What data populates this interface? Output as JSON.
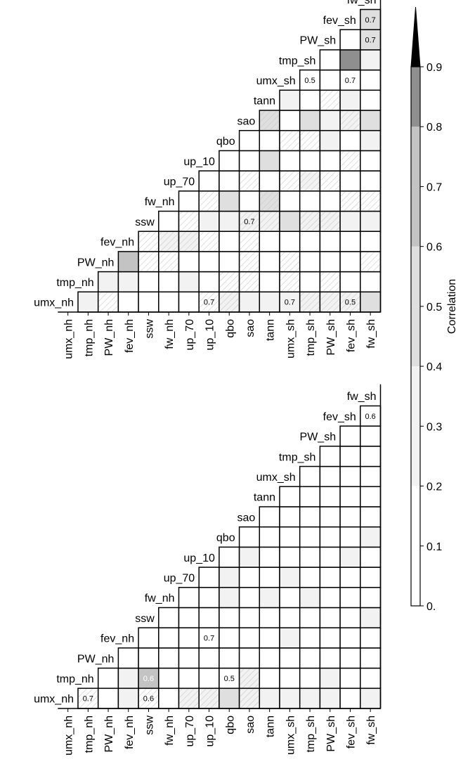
{
  "chart_data": [
    {
      "type": "heatmap",
      "variables": [
        "umx_nh",
        "tmp_nh",
        "PW_nh",
        "fev_nh",
        "ssw",
        "fw_nh",
        "up_70",
        "up_10",
        "qbo",
        "sao",
        "tann",
        "umx_sh",
        "tmp_sh",
        "PW_sh",
        "fev_sh",
        "fw_sh"
      ],
      "levels": [
        "0000000000000000",
        "1000000000000000",
        "0100000000000000",
        "0130000000000000",
        "0000000000000000",
        "0001000000000000",
        "0101000000000000",
        "0000100000000000",
        "1000120000000000",
        "1000100001000000",
        "1000120202000000",
        "1000200000100000",
        "1000101002000000",
        "1000100011000200",
        "1000100001104000",
        "2000100012001220"
      ],
      "hatched": [
        "0000000000000000",
        "0000000000000000",
        "1000000000000000",
        "0001000000000000",
        "0011000000000000",
        "0011000000000000",
        "0001100000000000",
        "1001010100000000",
        "1100000000000000",
        "0111101000000000",
        "0000110001000000",
        "0110001010000000",
        "1000101010000000",
        "1100101000100000",
        "1000010101000000",
        "0010010000000000"
      ],
      "annotations": [
        {
          "row": "up_10",
          "col": "umx_nh",
          "text": "0.7"
        },
        {
          "row": "umx_sh",
          "col": "umx_nh",
          "text": "0.7"
        },
        {
          "row": "fev_sh",
          "col": "umx_nh",
          "text": "0.5"
        },
        {
          "row": "sao",
          "col": "ssw",
          "text": "0.7"
        },
        {
          "row": "tmp_sh",
          "col": "umx_sh",
          "text": "0.5"
        },
        {
          "row": "fev_sh",
          "col": "umx_sh",
          "text": "0.7"
        },
        {
          "row": "fw_sh",
          "col": "fev_sh",
          "text": "0.7"
        },
        {
          "row": "fw_sh",
          "col": "PW_sh",
          "text": "0.7"
        }
      ]
    },
    {
      "type": "heatmap",
      "variables": [
        "umx_nh",
        "tmp_nh",
        "PW_nh",
        "fev_nh",
        "ssw",
        "fw_nh",
        "up_70",
        "up_10",
        "qbo",
        "sao",
        "tann",
        "umx_sh",
        "tmp_sh",
        "PW_sh",
        "fev_sh",
        "fw_sh"
      ],
      "levels": [
        "0000000000000000",
        "0000000000000000",
        "0000000000000000",
        "1100000000000000",
        "0300000000000000",
        "0000000000000000",
        "1000000000000000",
        "1000000300000000",
        "2000011000000000",
        "1100000100000000",
        "1000010000000000",
        "1001001000000000",
        "1000010000000000",
        "1100000000000000",
        "0000000100000000",
        "1000100010000000"
      ],
      "hatched": [
        "0000000000000000",
        "1000000000000000",
        "0000000000000000",
        "0000000000000000",
        "1100000000000000",
        "0000000000000000",
        "1000000000000000",
        "1000000000000000",
        "0000000000000000",
        "1100000000000000",
        "0000000000000000",
        "0000000000000000",
        "0000000000000000",
        "0000000000000000",
        "0000000000000000",
        "0000000000000000"
      ],
      "annotations": [
        {
          "row": "tmp_nh",
          "col": "umx_nh",
          "text": "0.7"
        },
        {
          "row": "ssw",
          "col": "umx_nh",
          "text": "0.6"
        },
        {
          "row": "ssw",
          "col": "tmp_nh",
          "text": "0.6"
        },
        {
          "row": "qbo",
          "col": "tmp_nh",
          "text": "0.5"
        },
        {
          "row": "up_10",
          "col": "fev_nh",
          "text": "0.7"
        },
        {
          "row": "fw_sh",
          "col": "fev_sh",
          "text": "0.6"
        }
      ]
    }
  ],
  "colorbar": {
    "label": "Correlation",
    "ticks": [
      "0.",
      "0.1",
      "0.2",
      "0.3",
      "0.4",
      "0.5",
      "0.6",
      "0.7",
      "0.8",
      "0.9"
    ],
    "range": [
      0,
      1
    ],
    "level_colors": [
      "#ffffff",
      "#f2f2f2",
      "#dfdfdf",
      "#c3c3c3",
      "#8f8f8f"
    ]
  }
}
